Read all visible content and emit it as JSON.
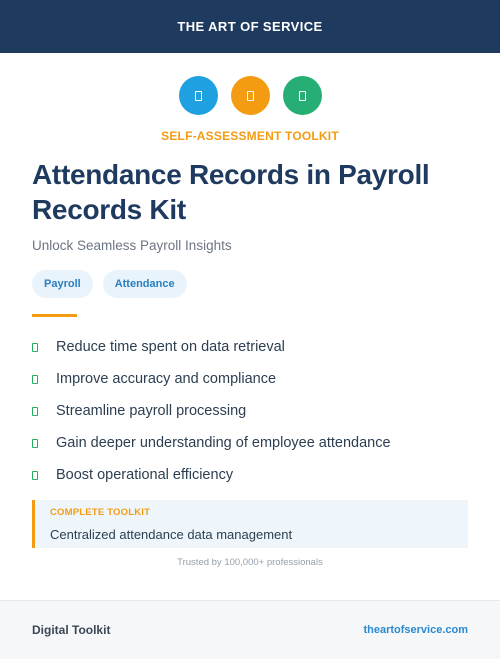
{
  "header": {
    "title": "THE ART OF SERVICE"
  },
  "icons": [
    {
      "name": "doc-icon",
      "color": "#1fa0e0"
    },
    {
      "name": "doc-icon",
      "color": "#f39c12"
    },
    {
      "name": "doc-icon",
      "color": "#27ae75"
    }
  ],
  "kicker": "SELF-ASSESSMENT TOOLKIT",
  "title": "Attendance Records in Payroll Records Kit",
  "subtitle": "Unlock Seamless Payroll Insights",
  "tags": [
    "Payroll",
    "Attendance"
  ],
  "features": [
    "Reduce time spent on data retrieval",
    "Improve accuracy and compliance",
    "Streamline payroll processing",
    "Gain deeper understanding of employee attendance",
    "Boost operational efficiency"
  ],
  "callout": {
    "label": "COMPLETE TOOLKIT",
    "text": "Centralized attendance data management"
  },
  "trust_text": "Trusted by 100,000+ professionals",
  "footer": {
    "left": "Digital Toolkit",
    "right": "theartofservice.com"
  }
}
